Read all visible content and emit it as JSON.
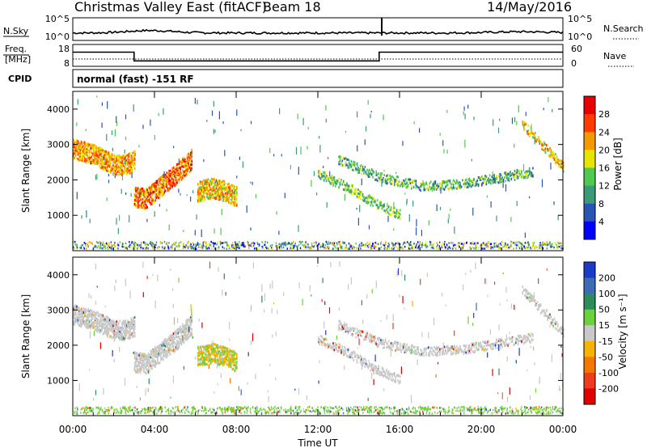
{
  "header": {
    "title": "Christmas Valley East (fitACF)",
    "beam": "Beam 18",
    "date": "14/May/2016"
  },
  "nsky_panel": {
    "left_label": "N.Sky",
    "right_label": "N.Search",
    "left_ticks": [
      "10^5",
      "10^0"
    ],
    "right_ticks": [
      "10^5",
      "10^0"
    ]
  },
  "freq_panel": {
    "left_label_1": "Freq.",
    "left_label_2": "[MHz]",
    "right_label": "Nave",
    "left_ticks": [
      "18",
      "8"
    ],
    "right_ticks": [
      "60",
      "0"
    ],
    "freq_segments": [
      {
        "t0": 0.0,
        "t1": 3.0,
        "mhz": 14.5
      },
      {
        "t0": 3.0,
        "t1": 15.0,
        "mhz": 10.5
      },
      {
        "t0": 15.0,
        "t1": 24.0,
        "mhz": 14.5
      }
    ],
    "nave_level": 20
  },
  "cpid": {
    "label": "CPID",
    "value": "normal (fast) -151 RF"
  },
  "power_panel": {
    "ylabel": "Slant Range [km]",
    "yticks": [
      "1000",
      "2000",
      "3000",
      "4000"
    ],
    "colorbar_label": "Power [dB]",
    "colorbar_ticks": [
      "4",
      "8",
      "12",
      "16",
      "20",
      "24",
      "28"
    ],
    "colors": [
      "#0000ff",
      "#2a54b4",
      "#3c9a78",
      "#52c850",
      "#e8e400",
      "#f49a00",
      "#ff3c00",
      "#e80000"
    ]
  },
  "velocity_panel": {
    "ylabel": "Slant Range [km]",
    "yticks": [
      "1000",
      "2000",
      "3000",
      "4000"
    ],
    "colorbar_label": "Velocity [m s⁻¹]",
    "colorbar_ticks": [
      "200",
      "100",
      "50",
      "15",
      "-15",
      "-50",
      "-100",
      "-200"
    ],
    "colors": [
      "#1a3cc8",
      "#3c6cb4",
      "#2e8c5a",
      "#6cd23c",
      "#c8c8c8",
      "#f4b400",
      "#f47800",
      "#f03c1e",
      "#e00000"
    ]
  },
  "xaxis": {
    "label": "Time UT",
    "ticks": [
      "00:00",
      "04:00",
      "08:00",
      "12:00",
      "16:00",
      "20:00",
      "00:00"
    ]
  },
  "chart_data": {
    "type": "heatmap",
    "xlabel": "Time UT",
    "ylabel": "Slant Range [km]",
    "x_unit": "hours UT",
    "xlim": [
      0,
      24
    ],
    "ylim": [
      0,
      4500
    ],
    "echo_bands": [
      {
        "t": [
          0.0,
          1.0,
          2.0,
          2.5,
          3.0
        ],
        "r": [
          2900,
          2750,
          2450,
          2450,
          2550
        ],
        "power_db": 22
      },
      {
        "t": [
          3.0,
          3.6,
          4.2,
          5.0,
          5.8
        ],
        "r": [
          1550,
          1500,
          1800,
          2150,
          2600
        ],
        "power_db": 24
      },
      {
        "t": [
          6.1,
          6.8,
          7.5,
          8.0
        ],
        "r": [
          1700,
          1800,
          1700,
          1550
        ],
        "power_db": 20
      },
      {
        "t": [
          12.0,
          13.5,
          15.0,
          16.0
        ],
        "r": [
          2200,
          1800,
          1300,
          1050
        ],
        "power_db": 14
      },
      {
        "t": [
          13.0,
          15.0,
          17.0,
          19.0,
          22.5
        ],
        "r": [
          2600,
          2100,
          1850,
          1900,
          2250
        ],
        "power_db": 12
      },
      {
        "t": [
          22.0,
          23.0,
          24.0
        ],
        "r": [
          3600,
          3000,
          2400
        ],
        "power_db": 20
      }
    ]
  }
}
